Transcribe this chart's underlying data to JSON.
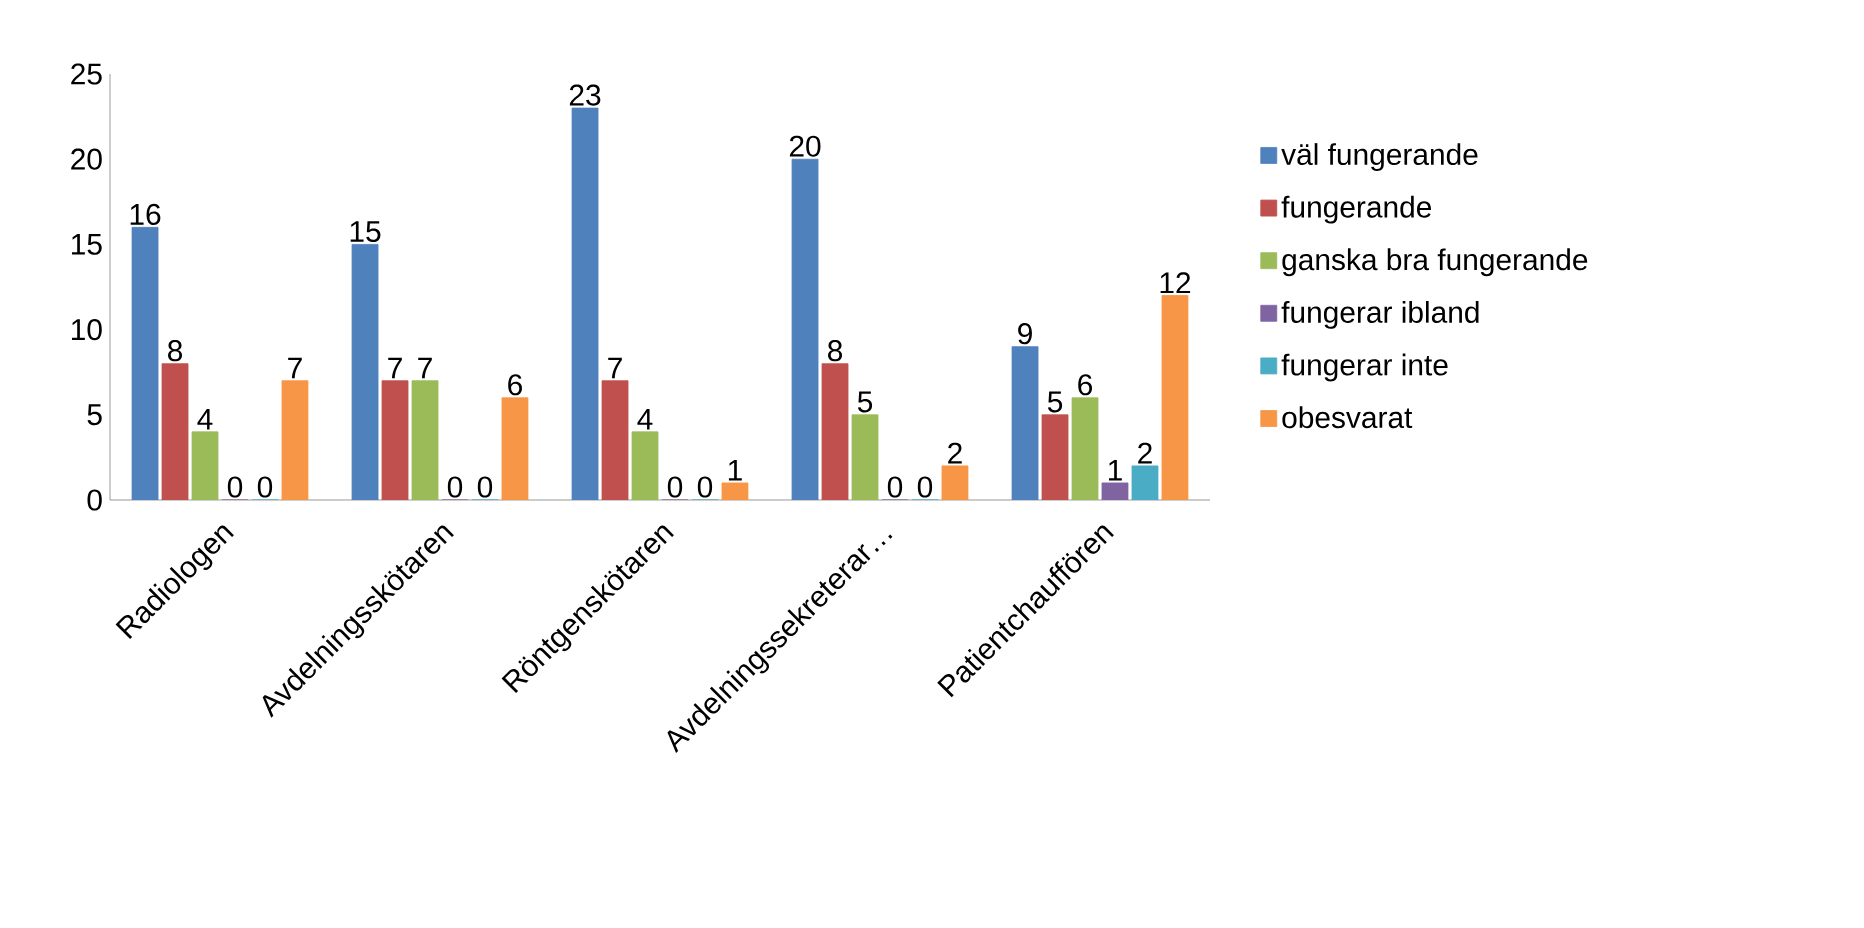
{
  "chart_data": {
    "type": "bar",
    "categories": [
      "Radiologen",
      "Avdelningsskötaren",
      "Röntgenskötaren",
      "Avdelningssekreterar…",
      "Patientchauffören"
    ],
    "series": [
      {
        "name": "väl fungerande",
        "color": "#4f81bd",
        "values": [
          16,
          15,
          23,
          20,
          9
        ]
      },
      {
        "name": "fungerande",
        "color": "#c0504d",
        "values": [
          8,
          7,
          7,
          8,
          5
        ]
      },
      {
        "name": "ganska bra fungerande",
        "color": "#9bbb59",
        "values": [
          4,
          7,
          4,
          5,
          6
        ]
      },
      {
        "name": "fungerar ibland",
        "color": "#8064a2",
        "values": [
          0,
          0,
          0,
          0,
          1
        ]
      },
      {
        "name": "fungerar inte",
        "color": "#4bacc6",
        "values": [
          0,
          0,
          0,
          0,
          2
        ]
      },
      {
        "name": "obesvarat",
        "color": "#f79646",
        "values": [
          7,
          6,
          1,
          2,
          12
        ]
      }
    ],
    "ylim": [
      0,
      25
    ],
    "yticks": [
      0,
      5,
      10,
      15,
      20,
      25
    ],
    "data_labels": true,
    "legend": "right",
    "grid": false
  }
}
